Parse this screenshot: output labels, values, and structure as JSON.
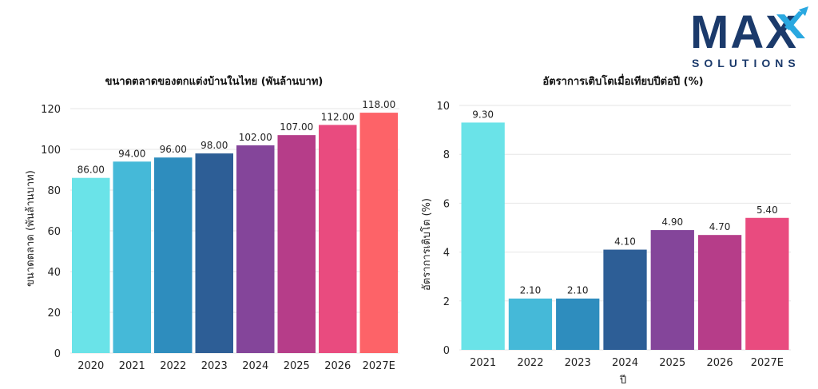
{
  "logo": {
    "main_text": "MAX",
    "sub_text": "SOLUTIONS",
    "colors": {
      "navy": "#1b3a6b",
      "blue": "#2aa8e0"
    }
  },
  "chart_data": [
    {
      "type": "bar",
      "title": "ขนาดตลาดของตกแต่งบ้านในไทย (พันล้านบาท)",
      "xlabel": "",
      "ylabel": "ขนาดตลาด (พันล้านบาท)",
      "categories": [
        "2020",
        "2021",
        "2022",
        "2023",
        "2024",
        "2025",
        "2026",
        "2027E"
      ],
      "values": [
        86,
        94,
        96,
        98,
        102,
        107,
        112,
        118
      ],
      "data_labels": [
        "86.00",
        "94.00",
        "96.00",
        "98.00",
        "102.00",
        "107.00",
        "112.00",
        "118.00"
      ],
      "ylim": [
        0,
        120
      ],
      "yticks": [
        0,
        20,
        40,
        60,
        80,
        100,
        120
      ],
      "grid": true,
      "colors": [
        "#6ae3e8",
        "#45b9d8",
        "#2e8dbe",
        "#2d5e96",
        "#84459a",
        "#b63d89",
        "#e94b7f",
        "#fd6368"
      ]
    },
    {
      "type": "bar",
      "title": "อัตราการเติบโตเมื่อเทียบปีต่อปี (%)",
      "xlabel": "ปี",
      "ylabel": "อัตราการเติบโต (%)",
      "categories": [
        "2021",
        "2022",
        "2023",
        "2024",
        "2025",
        "2026",
        "2027E"
      ],
      "values": [
        9.3,
        2.1,
        2.1,
        4.1,
        4.9,
        4.7,
        5.4
      ],
      "data_labels": [
        "9.30",
        "2.10",
        "2.10",
        "4.10",
        "4.90",
        "4.70",
        "5.40"
      ],
      "ylim": [
        0,
        10
      ],
      "yticks": [
        0,
        2,
        4,
        6,
        8,
        10
      ],
      "grid": true,
      "colors": [
        "#6ae3e8",
        "#45b9d8",
        "#2e8dbe",
        "#2d5e96",
        "#84459a",
        "#b63d89",
        "#e94b7f"
      ]
    }
  ]
}
